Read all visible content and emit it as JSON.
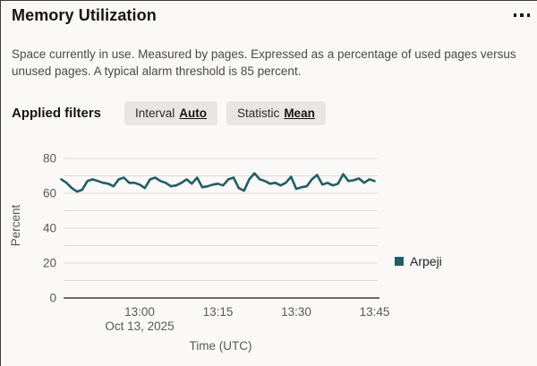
{
  "header": {
    "title": "Memory Utilization"
  },
  "menu": {
    "icon": "overflow-ellipsis"
  },
  "description": "Space currently in use. Measured by pages. Expressed as a percentage of used pages versus unused pages. A typical alarm threshold is 85 percent.",
  "filters": {
    "label": "Applied filters",
    "items": [
      {
        "label": "Interval",
        "value": "Auto"
      },
      {
        "label": "Statistic",
        "value": "Mean"
      }
    ]
  },
  "chart_data": {
    "type": "line",
    "title": "",
    "xlabel": "Time (UTC)",
    "ylabel": "Percent",
    "x_date_label": "Oct 13, 2025",
    "ylim": [
      0,
      80
    ],
    "y_ticks": [
      0,
      20,
      40,
      60,
      80
    ],
    "grid_step": 10,
    "grid": true,
    "legend_position": "right",
    "x_ticks": [
      {
        "minute": 0,
        "label": "13:00"
      },
      {
        "minute": 15,
        "label": "13:15"
      },
      {
        "minute": 30,
        "label": "13:30"
      },
      {
        "minute": 45,
        "label": "13:45"
      }
    ],
    "x_range_minutes": [
      -15,
      45
    ],
    "colors": {
      "grid": "#dcdad6",
      "axis": "#6e6a65",
      "tick_text": "#5c5853",
      "series_teal": "#205e66"
    },
    "series": [
      {
        "name": "Arpeji",
        "color": "#205e66",
        "values": [
          68,
          66,
          63,
          61,
          62,
          67,
          68,
          67,
          66,
          65.5,
          64,
          68,
          69,
          66,
          66,
          65,
          63,
          68,
          69,
          67,
          66,
          64,
          64.5,
          66,
          68,
          65.5,
          69,
          63.5,
          64,
          65,
          65.5,
          64.5,
          68,
          69,
          63,
          61.5,
          68,
          71.5,
          68,
          67,
          65.5,
          66,
          64.5,
          66,
          69.5,
          62.5,
          63.5,
          64,
          68,
          70.5,
          65,
          66,
          64.5,
          65.5,
          71,
          67,
          67.5,
          68.5,
          66,
          68,
          67
        ]
      }
    ]
  }
}
